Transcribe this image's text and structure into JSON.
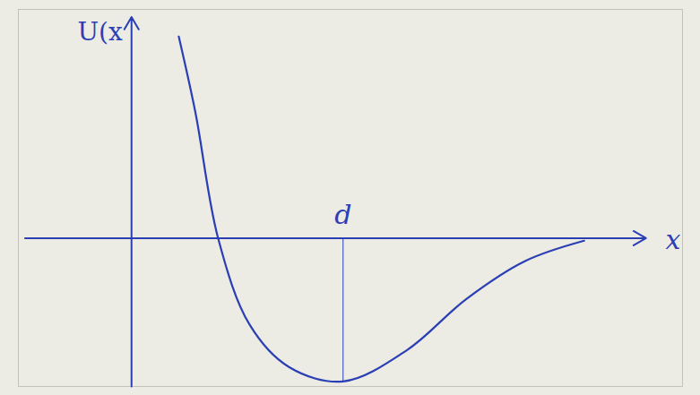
{
  "chart_data": {
    "type": "line",
    "x_label": "x",
    "y_label": "U(x",
    "x": [
      0.48,
      0.65,
      0.88,
      1.2,
      1.6,
      2.15,
      2.8,
      3.4,
      4.0,
      4.6
    ],
    "values": [
      2.38,
      1.48,
      0.0,
      -1.02,
      -1.52,
      -1.69,
      -1.32,
      -0.72,
      -0.27,
      -0.03
    ],
    "color": "#2b3fb5",
    "xlim": [
      -1.15,
      5.6
    ],
    "ylim": [
      -1.75,
      2.7
    ],
    "xticks": [],
    "yticks": [],
    "tick_labels": false,
    "grid": false,
    "annotations": [
      {
        "text": "d",
        "x": 2.15
      }
    ]
  }
}
